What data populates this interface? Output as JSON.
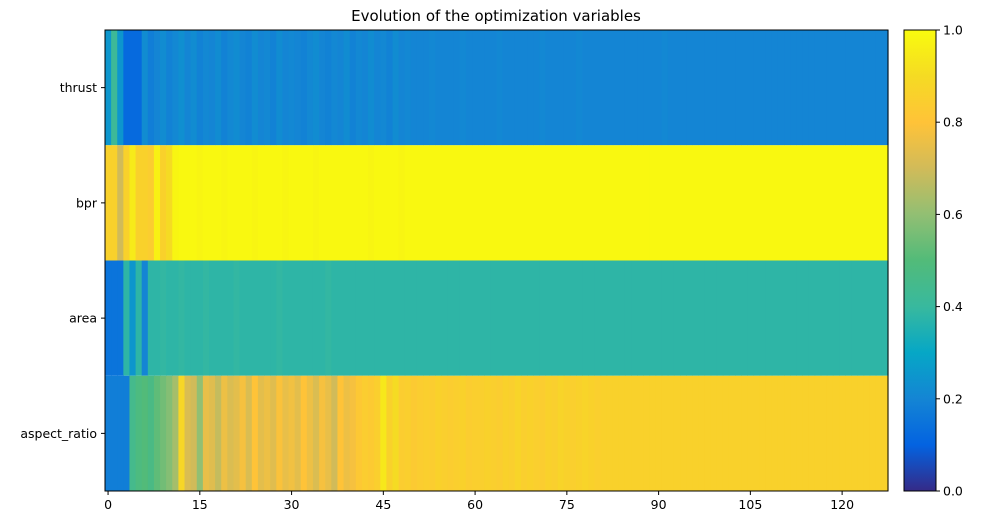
{
  "chart_data": {
    "type": "heatmap",
    "title": "Evolution of the optimization variables",
    "xlabel": "",
    "ylabel": "",
    "rows": [
      "thrust",
      "bpr",
      "area",
      "aspect_ratio"
    ],
    "x_ticks": [
      0,
      15,
      30,
      45,
      60,
      75,
      90,
      105,
      120
    ],
    "xlim": [
      -0.5,
      127.5
    ],
    "n_iterations": 128,
    "values": {
      "thrust": [
        0.25,
        0.42,
        0.25,
        0.12,
        0.12,
        0.12,
        0.22,
        0.18,
        0.2,
        0.22,
        0.19,
        0.21,
        0.23,
        0.2,
        0.22,
        0.19,
        0.21,
        0.2,
        0.22,
        0.19,
        0.21,
        0.22,
        0.2,
        0.19,
        0.22,
        0.2,
        0.21,
        0.19,
        0.22,
        0.2,
        0.21,
        0.2,
        0.19,
        0.21,
        0.22,
        0.2,
        0.19,
        0.21,
        0.2,
        0.22,
        0.19,
        0.21,
        0.2,
        0.22,
        0.2,
        0.21,
        0.19,
        0.22,
        0.2,
        0.21,
        0.2,
        0.2,
        0.2,
        0.21,
        0.2,
        0.2,
        0.2,
        0.2,
        0.21,
        0.2,
        0.2,
        0.2,
        0.2,
        0.2,
        0.21,
        0.2,
        0.2,
        0.2,
        0.2,
        0.2,
        0.2,
        0.21,
        0.2,
        0.2,
        0.2,
        0.2,
        0.2,
        0.21,
        0.2,
        0.2,
        0.2,
        0.2,
        0.2,
        0.2,
        0.2,
        0.2,
        0.2,
        0.2,
        0.2,
        0.2,
        0.2,
        0.21,
        0.2,
        0.2,
        0.2,
        0.2,
        0.2,
        0.2,
        0.2,
        0.2,
        0.2,
        0.2,
        0.2,
        0.2,
        0.2,
        0.2,
        0.2,
        0.2,
        0.2,
        0.2,
        0.2,
        0.2,
        0.2,
        0.2,
        0.2,
        0.2,
        0.2,
        0.2,
        0.2,
        0.2,
        0.2,
        0.2,
        0.2,
        0.2,
        0.2,
        0.2,
        0.2,
        0.2
      ],
      "bpr": [
        0.86,
        0.86,
        0.7,
        0.86,
        0.95,
        0.86,
        0.86,
        0.84,
        0.97,
        0.86,
        0.9,
        0.98,
        0.99,
        0.99,
        0.99,
        0.98,
        0.99,
        0.99,
        0.99,
        0.98,
        0.99,
        0.99,
        0.99,
        0.99,
        0.98,
        0.99,
        0.99,
        0.99,
        0.99,
        0.98,
        0.99,
        0.99,
        0.99,
        0.99,
        0.98,
        0.99,
        0.99,
        0.99,
        0.99,
        0.99,
        0.99,
        0.99,
        0.99,
        0.98,
        0.99,
        0.99,
        0.99,
        0.99,
        0.98,
        0.99,
        0.99,
        0.99,
        0.99,
        0.99,
        0.99,
        0.99,
        0.99,
        0.99,
        0.99,
        0.99,
        0.99,
        0.99,
        0.99,
        0.99,
        0.99,
        0.99,
        0.99,
        0.99,
        0.99,
        0.99,
        0.99,
        0.99,
        0.99,
        0.99,
        0.99,
        0.99,
        0.99,
        0.99,
        0.99,
        0.99,
        0.99,
        0.99,
        0.99,
        0.99,
        0.99,
        0.99,
        0.99,
        0.99,
        0.99,
        0.99,
        0.99,
        0.99,
        0.99,
        0.99,
        0.99,
        0.99,
        0.99,
        0.99,
        0.99,
        0.99,
        0.99,
        0.99,
        0.99,
        0.99,
        0.99,
        0.99,
        0.99,
        0.99,
        0.99,
        0.99,
        0.99,
        0.99,
        0.99,
        0.99,
        0.99,
        0.99,
        0.99,
        0.99,
        0.99,
        0.99,
        0.99,
        0.99,
        0.99,
        0.99,
        0.99,
        0.99,
        0.99,
        0.99
      ],
      "area": [
        0.15,
        0.15,
        0.15,
        0.38,
        0.25,
        0.38,
        0.2,
        0.38,
        0.38,
        0.39,
        0.38,
        0.38,
        0.39,
        0.38,
        0.38,
        0.38,
        0.39,
        0.38,
        0.38,
        0.38,
        0.38,
        0.39,
        0.38,
        0.38,
        0.38,
        0.38,
        0.38,
        0.38,
        0.39,
        0.38,
        0.38,
        0.38,
        0.38,
        0.38,
        0.38,
        0.38,
        0.39,
        0.38,
        0.38,
        0.38,
        0.38,
        0.38,
        0.38,
        0.38,
        0.38,
        0.38,
        0.38,
        0.38,
        0.38,
        0.38,
        0.38,
        0.38,
        0.38,
        0.38,
        0.38,
        0.38,
        0.38,
        0.38,
        0.38,
        0.38,
        0.38,
        0.38,
        0.38,
        0.38,
        0.38,
        0.38,
        0.38,
        0.38,
        0.38,
        0.38,
        0.38,
        0.38,
        0.38,
        0.38,
        0.38,
        0.38,
        0.38,
        0.38,
        0.38,
        0.38,
        0.38,
        0.38,
        0.38,
        0.38,
        0.38,
        0.38,
        0.38,
        0.38,
        0.38,
        0.38,
        0.38,
        0.38,
        0.38,
        0.38,
        0.38,
        0.38,
        0.38,
        0.38,
        0.38,
        0.38,
        0.38,
        0.38,
        0.38,
        0.38,
        0.38,
        0.38,
        0.38,
        0.38,
        0.38,
        0.38,
        0.38,
        0.38,
        0.38,
        0.38,
        0.38,
        0.38,
        0.38,
        0.38,
        0.38,
        0.38,
        0.38,
        0.38,
        0.38,
        0.38,
        0.38,
        0.38,
        0.38,
        0.38
      ],
      "aspect_ratio": [
        0.18,
        0.18,
        0.18,
        0.18,
        0.45,
        0.48,
        0.5,
        0.47,
        0.52,
        0.55,
        0.58,
        0.63,
        0.88,
        0.72,
        0.7,
        0.6,
        0.75,
        0.73,
        0.68,
        0.76,
        0.72,
        0.74,
        0.78,
        0.72,
        0.8,
        0.74,
        0.76,
        0.73,
        0.79,
        0.75,
        0.77,
        0.74,
        0.8,
        0.76,
        0.72,
        0.78,
        0.75,
        0.7,
        0.8,
        0.76,
        0.78,
        0.82,
        0.84,
        0.83,
        0.85,
        0.94,
        0.86,
        0.9,
        0.84,
        0.85,
        0.83,
        0.84,
        0.85,
        0.84,
        0.86,
        0.85,
        0.84,
        0.85,
        0.86,
        0.84,
        0.85,
        0.85,
        0.86,
        0.85,
        0.84,
        0.86,
        0.85,
        0.87,
        0.85,
        0.86,
        0.85,
        0.84,
        0.86,
        0.85,
        0.87,
        0.86,
        0.85,
        0.86,
        0.87,
        0.86,
        0.85,
        0.86,
        0.86,
        0.86,
        0.86,
        0.86,
        0.86,
        0.86,
        0.86,
        0.86,
        0.86,
        0.86,
        0.86,
        0.86,
        0.86,
        0.86,
        0.86,
        0.86,
        0.86,
        0.86,
        0.86,
        0.86,
        0.86,
        0.86,
        0.86,
        0.86,
        0.86,
        0.86,
        0.86,
        0.86,
        0.86,
        0.86,
        0.86,
        0.86,
        0.86,
        0.86,
        0.86,
        0.86,
        0.86,
        0.86,
        0.86,
        0.86,
        0.86,
        0.86,
        0.86,
        0.86,
        0.86,
        0.86
      ]
    },
    "colorbar": {
      "range": [
        0,
        1
      ],
      "ticks": [
        "0.0",
        "0.2",
        "0.4",
        "0.6",
        "0.8",
        "1.0"
      ],
      "colormap_stops": [
        {
          "v": 0.0,
          "color": "#352a87"
        },
        {
          "v": 0.1,
          "color": "#0363e1"
        },
        {
          "v": 0.2,
          "color": "#1485d4"
        },
        {
          "v": 0.3,
          "color": "#06a7c6"
        },
        {
          "v": 0.4,
          "color": "#38b99e"
        },
        {
          "v": 0.5,
          "color": "#52bb79"
        },
        {
          "v": 0.6,
          "color": "#92bf73"
        },
        {
          "v": 0.7,
          "color": "#d1bb59"
        },
        {
          "v": 0.8,
          "color": "#ffc338"
        },
        {
          "v": 0.9,
          "color": "#f5db23"
        },
        {
          "v": 1.0,
          "color": "#f9fb0e"
        }
      ]
    },
    "grid": false,
    "legend": "none"
  }
}
